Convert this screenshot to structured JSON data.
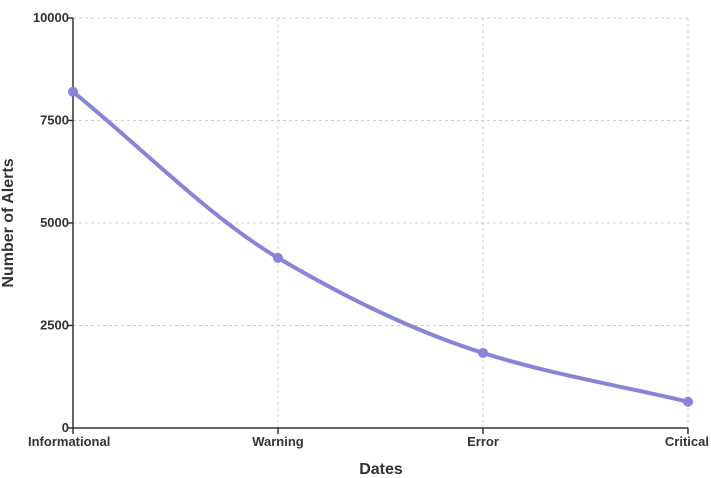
{
  "chart_data": {
    "type": "line",
    "title": "",
    "xlabel": "Dates",
    "ylabel": "Number of Alerts",
    "categories": [
      "Informational",
      "Warning",
      "Error",
      "Critical"
    ],
    "series": [
      {
        "values": [
          8200,
          4150,
          1830,
          640
        ],
        "color": "#8884d8"
      }
    ],
    "ylim": [
      0,
      10000
    ],
    "yticks": [
      "0",
      "2500",
      "5000",
      "7500",
      "10000"
    ],
    "grid": true,
    "curve": "smooth"
  }
}
